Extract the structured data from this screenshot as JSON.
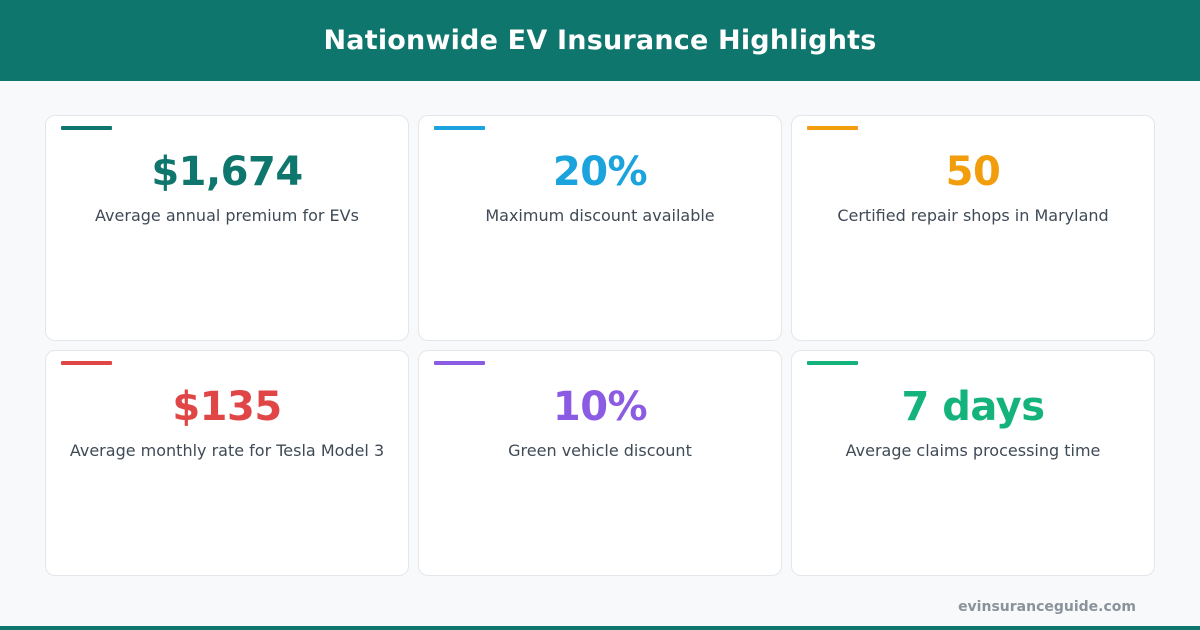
{
  "header": {
    "title": "Nationwide EV Insurance Highlights",
    "background_color": "#0f766e"
  },
  "stats": [
    {
      "value": "$1,674",
      "label": "Average annual premium for EVs",
      "color": "#0f766e"
    },
    {
      "value": "20%",
      "label": "Maximum discount available",
      "color": "#1aa3dd"
    },
    {
      "value": "50",
      "label": "Certified repair shops in Maryland",
      "color": "#f29e0c"
    },
    {
      "value": "$135",
      "label": "Average monthly rate for Tesla Model 3",
      "color": "#e14646"
    },
    {
      "value": "10%",
      "label": "Green vehicle discount",
      "color": "#8b5be3"
    },
    {
      "value": "7 days",
      "label": "Average claims processing time",
      "color": "#14b37c"
    }
  ],
  "footer": {
    "url": "evinsuranceguide.com"
  }
}
